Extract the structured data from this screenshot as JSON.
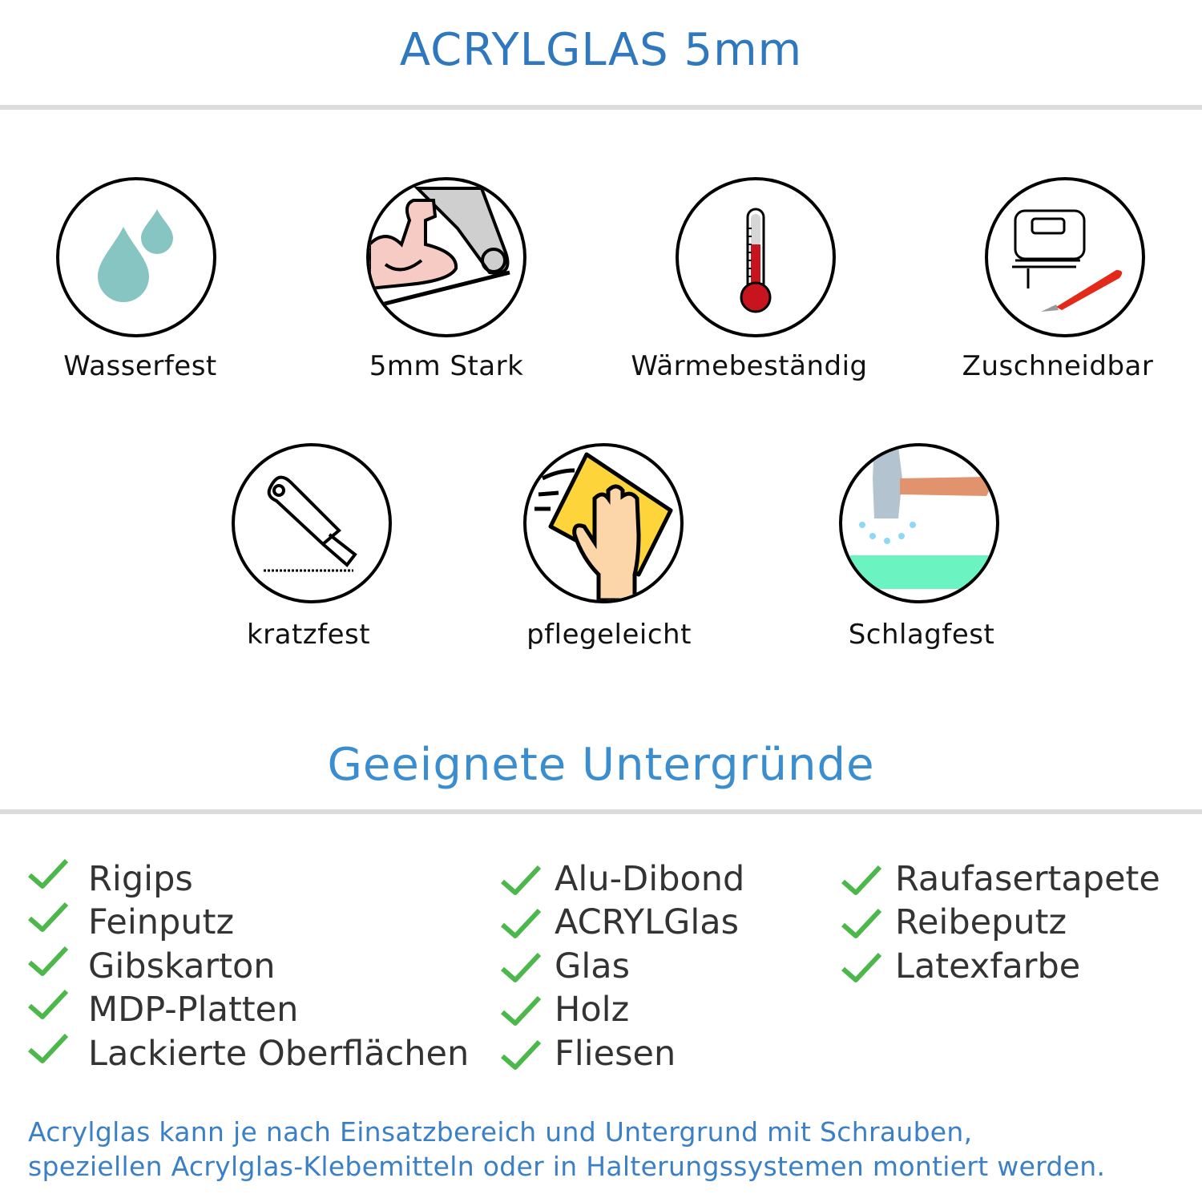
{
  "header": {
    "title": "ACRYLGLAS 5mm"
  },
  "features": [
    {
      "label": "Wasserfest",
      "icon": "water-drops-icon"
    },
    {
      "label": "5mm Stark",
      "icon": "strong-arm-icon"
    },
    {
      "label": "Wärmebeständig",
      "icon": "thermometer-icon"
    },
    {
      "label": "Zuschneidbar",
      "icon": "jigsaw-cutter-icon"
    },
    {
      "label": "kratzfest",
      "icon": "utility-knife-icon"
    },
    {
      "label": "pflegeleicht",
      "icon": "wiping-hand-icon"
    },
    {
      "label": "Schlagfest",
      "icon": "hammer-icon"
    }
  ],
  "surfaces": {
    "title": "Geeignete Untergründe",
    "columns": [
      [
        "Rigips",
        "Feinputz",
        "Gibskarton",
        "MDP-Platten",
        "Lackierte Oberflächen"
      ],
      [
        "Alu-Dibond",
        "ACRYLGlas",
        "Glas",
        "Holz",
        "Fliesen"
      ],
      [
        "Raufasertapete",
        "Reibeputz",
        "Latexfarbe"
      ]
    ]
  },
  "footer": {
    "line1": "Acrylglas kann je nach Einsatzbereich und Untergrund mit Schrauben,",
    "line2": "speziellen Acrylglas-Klebemitteln oder in Halterungssystemen montiert werden."
  },
  "colors": {
    "title": "#2f78bd",
    "heading": "#3a8ed0",
    "check": "#4cb84c",
    "footer": "#3b80c6"
  }
}
